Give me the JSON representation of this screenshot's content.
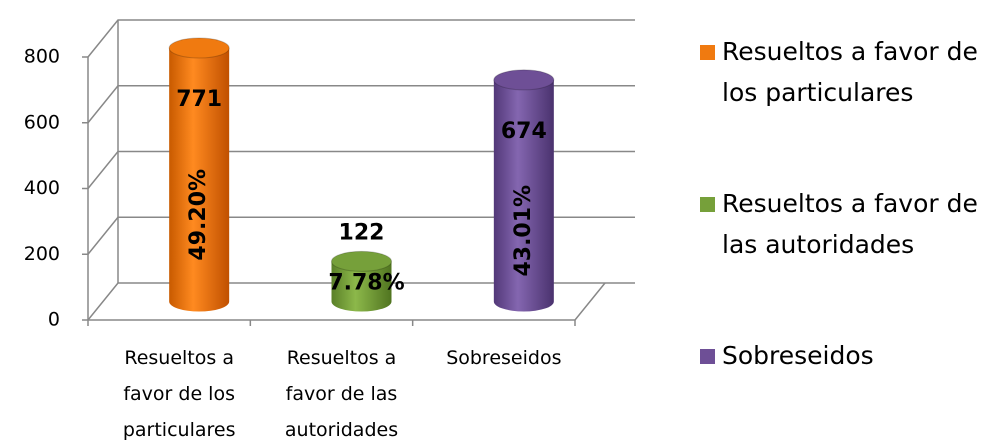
{
  "chart_data": {
    "type": "bar3d",
    "categories": [
      "Resueltos a favor de los particulares",
      "Resueltos a favor de las autoridades",
      "Sobreseidos"
    ],
    "values": [
      771,
      122,
      674
    ],
    "percent_labels": [
      "49.20%",
      "7.78%",
      "43.01%"
    ],
    "colors": [
      "#f07a10",
      "#76a03a",
      "#6e4f96"
    ],
    "ylim": [
      0,
      800
    ],
    "yticks": [
      0,
      200,
      400,
      600,
      800
    ],
    "grid": true,
    "legend": "right"
  }
}
